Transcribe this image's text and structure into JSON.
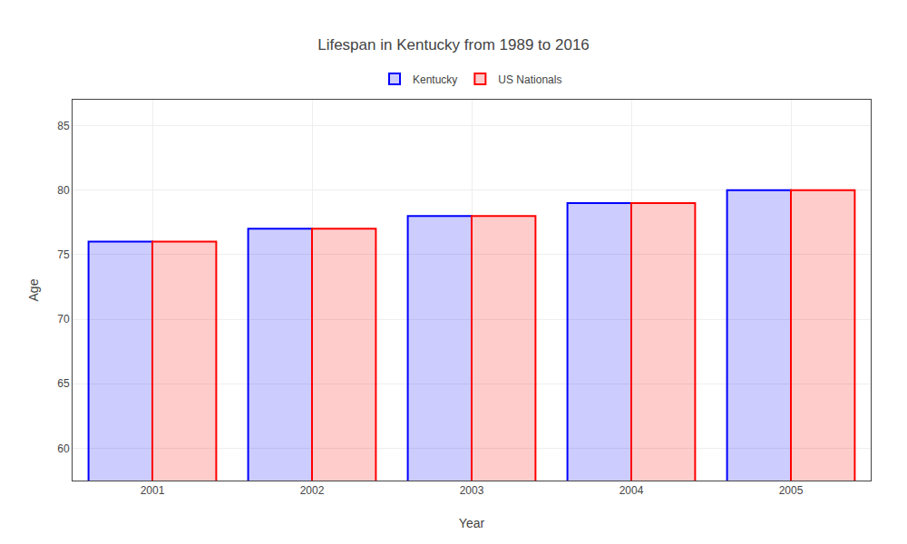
{
  "chart_data": {
    "type": "bar",
    "title": "Lifespan in Kentucky from 1989 to 2016",
    "xlabel": "Year",
    "ylabel": "Age",
    "categories": [
      "2001",
      "2002",
      "2003",
      "2004",
      "2005"
    ],
    "series": [
      {
        "name": "Kentucky",
        "color": "#0000ff",
        "values": [
          76,
          77,
          78,
          79,
          80
        ]
      },
      {
        "name": "US Nationals",
        "color": "#ff0000",
        "values": [
          76,
          77,
          78,
          79,
          80
        ]
      }
    ],
    "ylim": [
      57.5,
      87
    ],
    "yticks": [
      60,
      65,
      70,
      75,
      80,
      85
    ],
    "grid": true,
    "legend": "top"
  }
}
